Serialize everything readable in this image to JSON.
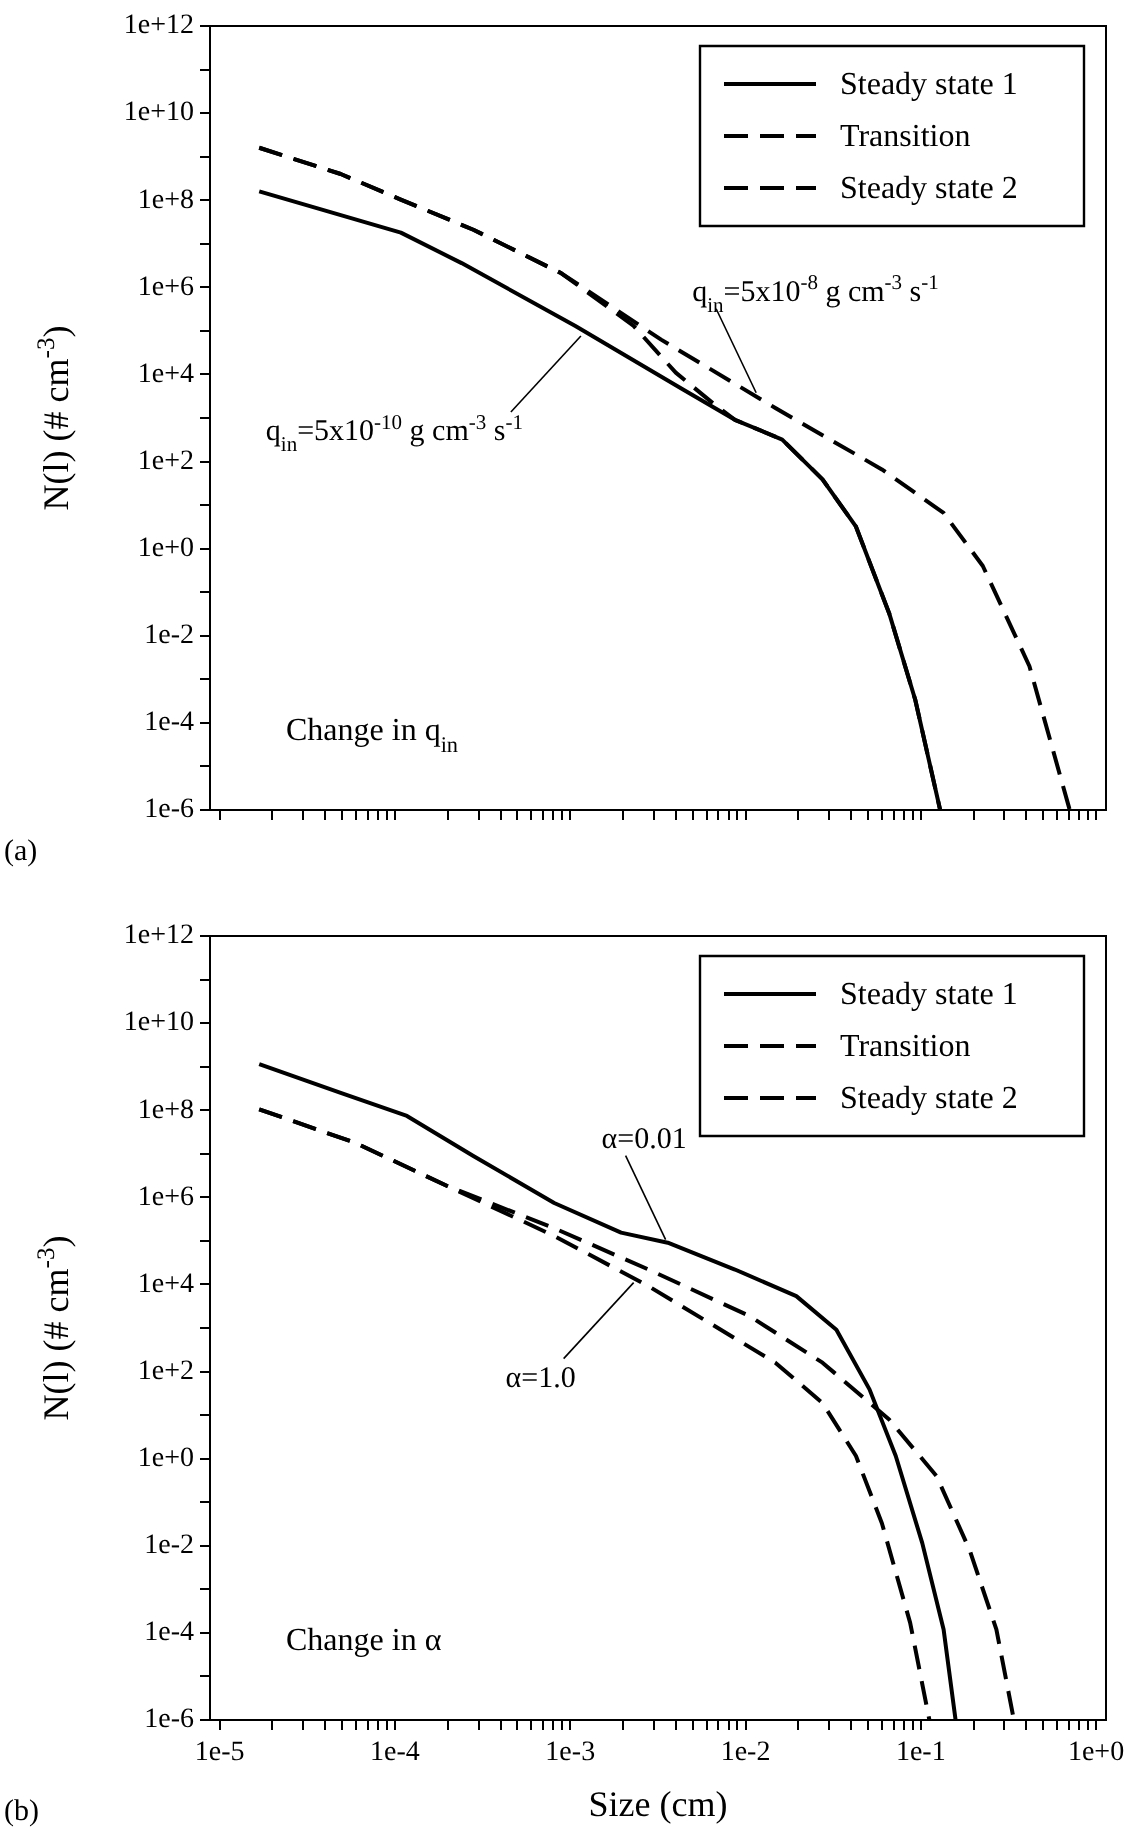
{
  "chart_data": [
    {
      "type": "line",
      "log": "xy",
      "grid": false,
      "legend": "top right",
      "tick_labels": "y",
      "ylabel": "N(l) (# cm$^{-3}$)",
      "xlim": [
        8.8e-06,
        1.14
      ],
      "ylim": [
        1e-06,
        1000000000000.0
      ],
      "xticks": [
        {
          "value": 1e-05,
          "label": null
        },
        {
          "value": 0.0001,
          "label": null
        },
        {
          "value": 0.001,
          "label": null
        },
        {
          "value": 0.01,
          "label": null
        },
        {
          "value": 0.1,
          "label": null
        },
        {
          "value": 1,
          "label": null
        },
        {
          "value": 2e-05,
          "label": null
        },
        {
          "value": 3e-05,
          "label": null
        },
        {
          "value": 4e-05,
          "label": null
        },
        {
          "value": 5e-05,
          "label": null
        },
        {
          "value": 6e-05,
          "label": null
        },
        {
          "value": 7e-05,
          "label": null
        },
        {
          "value": 8e-05,
          "label": null
        },
        {
          "value": 9e-05,
          "label": null
        },
        {
          "value": 0.0002,
          "label": null
        },
        {
          "value": 0.0003,
          "label": null
        },
        {
          "value": 0.0004,
          "label": null
        },
        {
          "value": 0.0005,
          "label": null
        },
        {
          "value": 0.0006,
          "label": null
        },
        {
          "value": 0.0007,
          "label": null
        },
        {
          "value": 0.0008,
          "label": null
        },
        {
          "value": 0.0009,
          "label": null
        },
        {
          "value": 0.002,
          "label": null
        },
        {
          "value": 0.003,
          "label": null
        },
        {
          "value": 0.004,
          "label": null
        },
        {
          "value": 0.005,
          "label": null
        },
        {
          "value": 0.006,
          "label": null
        },
        {
          "value": 0.007,
          "label": null
        },
        {
          "value": 0.008,
          "label": null
        },
        {
          "value": 0.009,
          "label": null
        },
        {
          "value": 0.02,
          "label": null
        },
        {
          "value": 0.03,
          "label": null
        },
        {
          "value": 0.04,
          "label": null
        },
        {
          "value": 0.05,
          "label": null
        },
        {
          "value": 0.06,
          "label": null
        },
        {
          "value": 0.07,
          "label": null
        },
        {
          "value": 0.08,
          "label": null
        },
        {
          "value": 0.09,
          "label": null
        },
        {
          "value": 0.2,
          "label": null
        },
        {
          "value": 0.3,
          "label": null
        },
        {
          "value": 0.4,
          "label": null
        },
        {
          "value": 0.5,
          "label": null
        },
        {
          "value": 0.6,
          "label": null
        },
        {
          "value": 0.7,
          "label": null
        },
        {
          "value": 0.8,
          "label": null
        },
        {
          "value": 0.9,
          "label": null
        }
      ],
      "yticks": [
        {
          "value": 1e-06,
          "label": "1e-6"
        },
        {
          "value": 1e-05,
          "label": null
        },
        {
          "value": 0.0001,
          "label": "1e-4"
        },
        {
          "value": 0.001,
          "label": null
        },
        {
          "value": 0.01,
          "label": "1e-2"
        },
        {
          "value": 0.1,
          "label": null
        },
        {
          "value": 1,
          "label": "1e+0"
        },
        {
          "value": 10,
          "label": null
        },
        {
          "value": 100,
          "label": "1e+2"
        },
        {
          "value": 1000.0,
          "label": null
        },
        {
          "value": 10000.0,
          "label": "1e+4"
        },
        {
          "value": 100000.0,
          "label": null
        },
        {
          "value": 1000000.0,
          "label": "1e+6"
        },
        {
          "value": 10000000.0,
          "label": null
        },
        {
          "value": 100000000.0,
          "label": "1e+8"
        },
        {
          "value": 1000000000.0,
          "label": null
        },
        {
          "value": 10000000000.0,
          "label": "1e+10"
        },
        {
          "value": 100000000000.0,
          "label": null
        },
        {
          "value": 1000000000000.0,
          "label": "1e+12"
        }
      ],
      "series": [
        {
          "name": "Transition",
          "color": "#000000",
          "line_style": "dashed",
          "x": [
            1.68e-05,
            4.9e-05,
            0.000107,
            0.00028,
            0.00089,
            0.0023,
            0.004,
            0.0068,
            0.0087,
            0.0162,
            0.0275,
            0.0427,
            0.066,
            0.093,
            0.129
          ],
          "values": [
            1600000000.0,
            400000000.0,
            105000000.0,
            21000000.0,
            2100000.0,
            130000.0,
            11000.0,
            1900.0,
            910,
            320,
            39,
            3.2,
            0.033,
            0.00034,
            1e-06
          ]
        },
        {
          "name": "Steady state 1",
          "color": "#000000",
          "line_style": "solid",
          "x": [
            1.68e-05,
            0.000108,
            0.00024,
            0.00107,
            0.0044,
            0.0087,
            0.0162,
            0.0275,
            0.0427,
            0.066,
            0.093,
            0.129
          ],
          "values": [
            160000000.0,
            18000000.0,
            3600000.0,
            130000.0,
            4500.0,
            910,
            320,
            39,
            3.2,
            0.033,
            0.00034,
            1e-06
          ]
        },
        {
          "name": "Steady state 2",
          "color": "#000000",
          "line_style": "dashed",
          "x": [
            1.68e-05,
            4.9e-05,
            0.000107,
            0.00028,
            0.00089,
            0.0033,
            0.0148,
            0.06,
            0.135,
            0.226,
            0.417,
            0.708
          ],
          "values": [
            1600000000.0,
            400000000.0,
            105000000.0,
            21000000.0,
            2100000.0,
            63000.0,
            1700.0,
            66,
            6.6,
            0.4,
            0.002,
            1e-06
          ]
        }
      ],
      "annotations": [
        {
          "text": "q$_{in}$=5x10$^{-8}$ g cm$^{-3}$ s$^{-1}$",
          "x": 0.0115,
          "y": 3800.0
        },
        {
          "text": "q$_{in}$=5x10$^{-10}$ g cm$^{-3}$ s$^{-1}$",
          "x": 0.00115,
          "y": 76000.0
        },
        "Change in q$_{in}$",
        "(a)"
      ]
    },
    {
      "type": "line",
      "log": "xy",
      "grid": false,
      "legend": "top right",
      "xlabel": "Size (cm)",
      "ylabel": "N(l) (# cm$^{-3}$)",
      "xlim": [
        8.8e-06,
        1.14
      ],
      "ylim": [
        1e-06,
        1000000000000.0
      ],
      "xticks": [
        {
          "value": 1e-05,
          "label": "1e-5"
        },
        {
          "value": 0.0001,
          "label": "1e-4"
        },
        {
          "value": 0.001,
          "label": "1e-3"
        },
        {
          "value": 0.01,
          "label": "1e-2"
        },
        {
          "value": 0.1,
          "label": "1e-1"
        },
        {
          "value": 1,
          "label": "1e+0"
        },
        {
          "value": 2e-05,
          "label": null
        },
        {
          "value": 3e-05,
          "label": null
        },
        {
          "value": 4e-05,
          "label": null
        },
        {
          "value": 5e-05,
          "label": null
        },
        {
          "value": 6e-05,
          "label": null
        },
        {
          "value": 7e-05,
          "label": null
        },
        {
          "value": 8e-05,
          "label": null
        },
        {
          "value": 9e-05,
          "label": null
        },
        {
          "value": 0.0002,
          "label": null
        },
        {
          "value": 0.0003,
          "label": null
        },
        {
          "value": 0.0004,
          "label": null
        },
        {
          "value": 0.0005,
          "label": null
        },
        {
          "value": 0.0006,
          "label": null
        },
        {
          "value": 0.0007,
          "label": null
        },
        {
          "value": 0.0008,
          "label": null
        },
        {
          "value": 0.0009,
          "label": null
        },
        {
          "value": 0.002,
          "label": null
        },
        {
          "value": 0.003,
          "label": null
        },
        {
          "value": 0.004,
          "label": null
        },
        {
          "value": 0.005,
          "label": null
        },
        {
          "value": 0.006,
          "label": null
        },
        {
          "value": 0.007,
          "label": null
        },
        {
          "value": 0.008,
          "label": null
        },
        {
          "value": 0.009,
          "label": null
        },
        {
          "value": 0.02,
          "label": null
        },
        {
          "value": 0.03,
          "label": null
        },
        {
          "value": 0.04,
          "label": null
        },
        {
          "value": 0.05,
          "label": null
        },
        {
          "value": 0.06,
          "label": null
        },
        {
          "value": 0.07,
          "label": null
        },
        {
          "value": 0.08,
          "label": null
        },
        {
          "value": 0.09,
          "label": null
        },
        {
          "value": 0.2,
          "label": null
        },
        {
          "value": 0.3,
          "label": null
        },
        {
          "value": 0.4,
          "label": null
        },
        {
          "value": 0.5,
          "label": null
        },
        {
          "value": 0.6,
          "label": null
        },
        {
          "value": 0.7,
          "label": null
        },
        {
          "value": 0.8,
          "label": null
        },
        {
          "value": 0.9,
          "label": null
        }
      ],
      "yticks": [
        {
          "value": 1e-06,
          "label": "1e-6"
        },
        {
          "value": 1e-05,
          "label": null
        },
        {
          "value": 0.0001,
          "label": "1e-4"
        },
        {
          "value": 0.001,
          "label": null
        },
        {
          "value": 0.01,
          "label": "1e-2"
        },
        {
          "value": 0.1,
          "label": null
        },
        {
          "value": 1,
          "label": "1e+0"
        },
        {
          "value": 10,
          "label": null
        },
        {
          "value": 100,
          "label": "1e+2"
        },
        {
          "value": 1000.0,
          "label": null
        },
        {
          "value": 10000.0,
          "label": "1e+4"
        },
        {
          "value": 100000.0,
          "label": null
        },
        {
          "value": 1000000.0,
          "label": "1e+6"
        },
        {
          "value": 10000000.0,
          "label": null
        },
        {
          "value": 100000000.0,
          "label": "1e+8"
        },
        {
          "value": 1000000000.0,
          "label": null
        },
        {
          "value": 10000000000.0,
          "label": "1e+10"
        },
        {
          "value": 100000000000.0,
          "label": null
        },
        {
          "value": 1000000000000.0,
          "label": "1e+12"
        }
      ],
      "series": [
        {
          "name": "Transition",
          "color": "#000000",
          "line_style": "dashed",
          "x": [
            1.68e-05,
            5.9e-05,
            0.0002,
            0.00081,
            0.0028,
            0.0105,
            0.0275,
            0.066,
            0.123,
            0.19,
            0.27,
            0.34
          ],
          "values": [
            105000000.0,
            18000000.0,
            1800000.0,
            195000.0,
            22000.0,
            1900.0,
            160,
            7.9,
            0.4,
            0.008,
            0.00012,
            1e-06
          ]
        },
        {
          "name": "Steady state 1",
          "color": "#000000",
          "line_style": "solid",
          "x": [
            1.68e-05,
            4.9e-05,
            0.000117,
            0.00028,
            0.00081,
            0.00195,
            0.0036,
            0.0087,
            0.0195,
            0.033,
            0.051,
            0.072,
            0.102,
            0.135,
            0.158
          ],
          "values": [
            1150000000.0,
            250000000.0,
            74000000.0,
            8900000.0,
            740000.0,
            155000.0,
            91000.0,
            22000.0,
            5400.0,
            910,
            39,
            1.15,
            0.0115,
            0.00012,
            1e-06
          ]
        },
        {
          "name": "Steady state 2",
          "color": "#000000",
          "line_style": "dashed",
          "x": [
            1.68e-05,
            5.9e-05,
            0.0002,
            0.00081,
            0.0028,
            0.0148,
            0.0275,
            0.0427,
            0.06,
            0.087,
            0.112
          ],
          "values": [
            105000000.0,
            18000000.0,
            1800000.0,
            130000.0,
            9100.0,
            160,
            19,
            1.15,
            0.033,
            0.00017,
            1e-06
          ]
        }
      ],
      "annotations": [
        {
          "text": "α=0.01",
          "x": 0.0035,
          "y": 107000.0
        },
        {
          "text": "α=1.0",
          "x": 0.0023,
          "y": 11000.0
        },
        "Change in α",
        "(b)"
      ]
    }
  ]
}
